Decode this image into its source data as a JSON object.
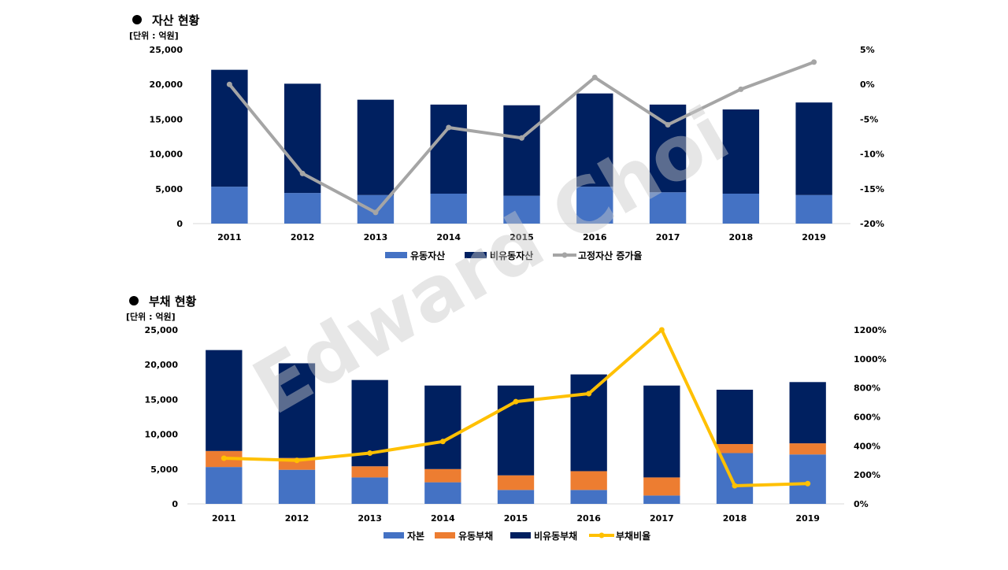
{
  "watermark": "Edward Choi",
  "chart_data": [
    {
      "type": "bar",
      "title": "자산 현황",
      "unit": "[단위 : 억원]",
      "categories": [
        "2011",
        "2012",
        "2013",
        "2014",
        "2015",
        "2016",
        "2017",
        "2018",
        "2019"
      ],
      "stacked": true,
      "series": [
        {
          "name": "유동자산",
          "kind": "bar",
          "color": "#4472c4",
          "values": [
            5300,
            4400,
            4100,
            4300,
            4000,
            5300,
            4500,
            4300,
            4100
          ]
        },
        {
          "name": "비유동자산",
          "kind": "bar",
          "color": "#002060",
          "values": [
            16800,
            15700,
            13700,
            12800,
            13000,
            13400,
            12600,
            12100,
            13300
          ]
        },
        {
          "name": "고정자산 증가율",
          "kind": "line",
          "axis": "right",
          "color": "#a5a5a5",
          "values": [
            0,
            -12.8,
            -18.4,
            -6.2,
            -7.7,
            1.0,
            -5.8,
            -0.7,
            3.2
          ]
        }
      ],
      "left_axis": {
        "ylim": [
          0,
          25000
        ],
        "ticks": [
          "0",
          "5,000",
          "10,000",
          "15,000",
          "20,000",
          "25,000"
        ]
      },
      "right_axis": {
        "ylim": [
          -20,
          5
        ],
        "ticks": [
          "-20%",
          "-15%",
          "-10%",
          "-5%",
          "0%",
          "5%"
        ]
      },
      "legend_position": "bottom"
    },
    {
      "type": "bar",
      "title": "부채 현황",
      "unit": "[단위 : 억원]",
      "categories": [
        "2011",
        "2012",
        "2013",
        "2014",
        "2015",
        "2016",
        "2017",
        "2018",
        "2019"
      ],
      "stacked": true,
      "series": [
        {
          "name": "자본",
          "kind": "bar",
          "color": "#4472c4",
          "values": [
            5300,
            4900,
            3800,
            3100,
            2000,
            2000,
            1200,
            7300,
            7100
          ]
        },
        {
          "name": "유동부채",
          "kind": "bar",
          "color": "#ed7d31",
          "values": [
            2300,
            1700,
            1600,
            1900,
            2100,
            2700,
            2600,
            1300,
            1600
          ]
        },
        {
          "name": "비유동부채",
          "kind": "bar",
          "color": "#002060",
          "values": [
            14500,
            13600,
            12400,
            12000,
            12900,
            13900,
            13200,
            7800,
            8800
          ]
        },
        {
          "name": "부채비율",
          "kind": "line",
          "axis": "right",
          "color": "#ffc000",
          "values": [
            315,
            300,
            350,
            430,
            705,
            760,
            1200,
            125,
            140
          ]
        }
      ],
      "left_axis": {
        "ylim": [
          0,
          25000
        ],
        "ticks": [
          "0",
          "5,000",
          "10,000",
          "15,000",
          "20,000",
          "25,000"
        ]
      },
      "right_axis": {
        "ylim": [
          0,
          1200
        ],
        "ticks": [
          "0%",
          "200%",
          "400%",
          "600%",
          "800%",
          "1000%",
          "1200%"
        ]
      },
      "legend_position": "bottom"
    }
  ]
}
